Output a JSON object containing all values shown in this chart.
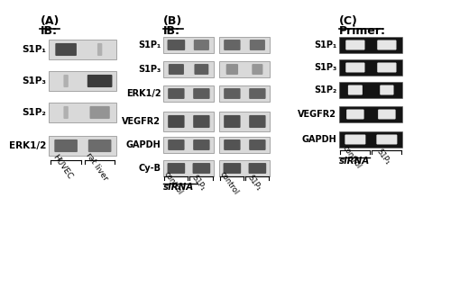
{
  "bg_color": "#f0f0f0",
  "panel_A": {
    "label": "(A)",
    "header": "IB:",
    "rows": [
      "S1P₁",
      "S1P₃",
      "S1P₂",
      "ERK1/2"
    ],
    "x_labels": [
      "HUVEC",
      "rat liver"
    ]
  },
  "panel_B": {
    "label": "(B)",
    "header": "IB:",
    "rows": [
      "S1P₁",
      "S1P₃",
      "ERK1/2",
      "VEGFR2",
      "GAPDH",
      "Cy-B"
    ],
    "x_labels": [
      "control",
      "S1P₁",
      "control",
      "S1P₁"
    ],
    "siRNA_label": "siRNA"
  },
  "panel_C": {
    "label": "(C)",
    "header": "Primer:",
    "rows": [
      "S1P₁",
      "S1P₃",
      "S1P₂",
      "VEGFR2",
      "GAPDH"
    ],
    "x_labels": [
      "control",
      "S1P₁"
    ],
    "siRNA_label": "siRNA"
  },
  "font_color": "#000000",
  "band_bg": "#c8c8c8",
  "band_dark": "#303030"
}
